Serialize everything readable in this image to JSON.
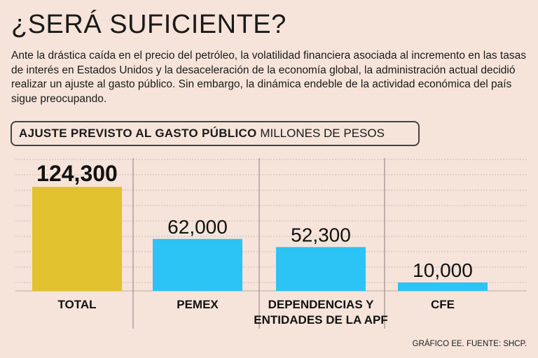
{
  "title": "¿SERÁ SUFICIENTE?",
  "intro": "Ante la drástica caída en el precio del petróleo, la volatilidad financiera asociada al incremento en las tasas de interés en Estados Unidos y la desaceleración de la economía global, la administración actual decidió realizar un ajuste al gasto público. Sin embargo, la dinámica endeble de la actividad económica del país sigue preocupando.",
  "source": "GRÁFICO EE. FUENTE: SHCP.",
  "chart_data": {
    "type": "bar",
    "title": "AJUSTE PREVISTO AL GASTO PÚBLICO",
    "subtitle": "MILLONES DE PESOS",
    "categories": [
      "TOTAL",
      "PEMEX",
      "DEPENDENCIAS Y ENTIDADES DE LA APF",
      "CFE"
    ],
    "category_lines": [
      [
        "TOTAL"
      ],
      [
        "PEMEX"
      ],
      [
        "DEPENDENCIAS Y",
        "ENTIDADES DE LA APF"
      ],
      [
        "CFE"
      ]
    ],
    "values": [
      124300,
      62000,
      52300,
      10000
    ],
    "labels": [
      "124,300",
      "62,000",
      "52,300",
      "10,000"
    ],
    "colors": [
      "#e1c22e",
      "#2cc3f5",
      "#2cc3f5",
      "#2cc3f5"
    ],
    "ylim": [
      0,
      157000
    ],
    "grid": true
  }
}
